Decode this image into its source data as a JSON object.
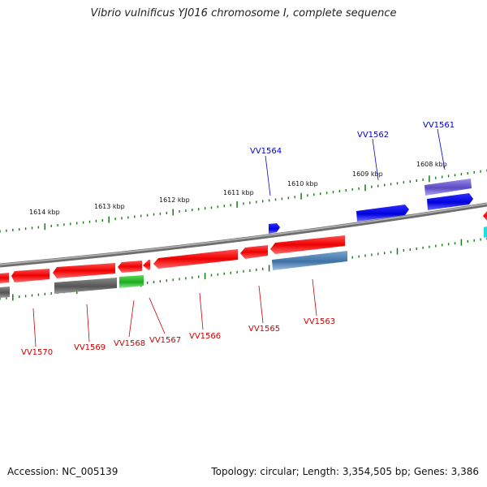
{
  "title": "Vibrio vulnificus YJ016 chromosome I, complete sequence",
  "footer": {
    "accession": "Accession: NC_005139",
    "info": "Topology: circular; Length: 3,354,505 bp; Genes: 3,386"
  },
  "kbp_labels": [
    "1614 kbp",
    "1613 kbp",
    "1612 kbp",
    "1611 kbp",
    "1610 kbp",
    "1609 kbp",
    "1608 kbp"
  ],
  "genes_top": [
    {
      "label": "VV1564",
      "color": "#0000cc"
    },
    {
      "label": "VV1562",
      "color": "#0000cc"
    },
    {
      "label": "VV1561",
      "color": "#0000cc"
    }
  ],
  "genes_bottom": [
    {
      "label": "VV1570",
      "color": "#cc0000"
    },
    {
      "label": "VV1569",
      "color": "#cc0000"
    },
    {
      "label": "VV1568",
      "color": "#cc0000"
    },
    {
      "label": "VV1567",
      "color": "#cc0000"
    },
    {
      "label": "VV1566",
      "color": "#cc0000"
    },
    {
      "label": "VV1565",
      "color": "#cc0000"
    },
    {
      "label": "VV1563",
      "color": "#cc0000"
    }
  ],
  "colors": {
    "forward": "#0000ee",
    "reverse": "#ee0000",
    "other": "#666666",
    "rna": "#22aa22",
    "steel": "#4f86b8",
    "purple": "#6a5acd",
    "tick": "#1a7a1a",
    "backbone": "#808080"
  }
}
